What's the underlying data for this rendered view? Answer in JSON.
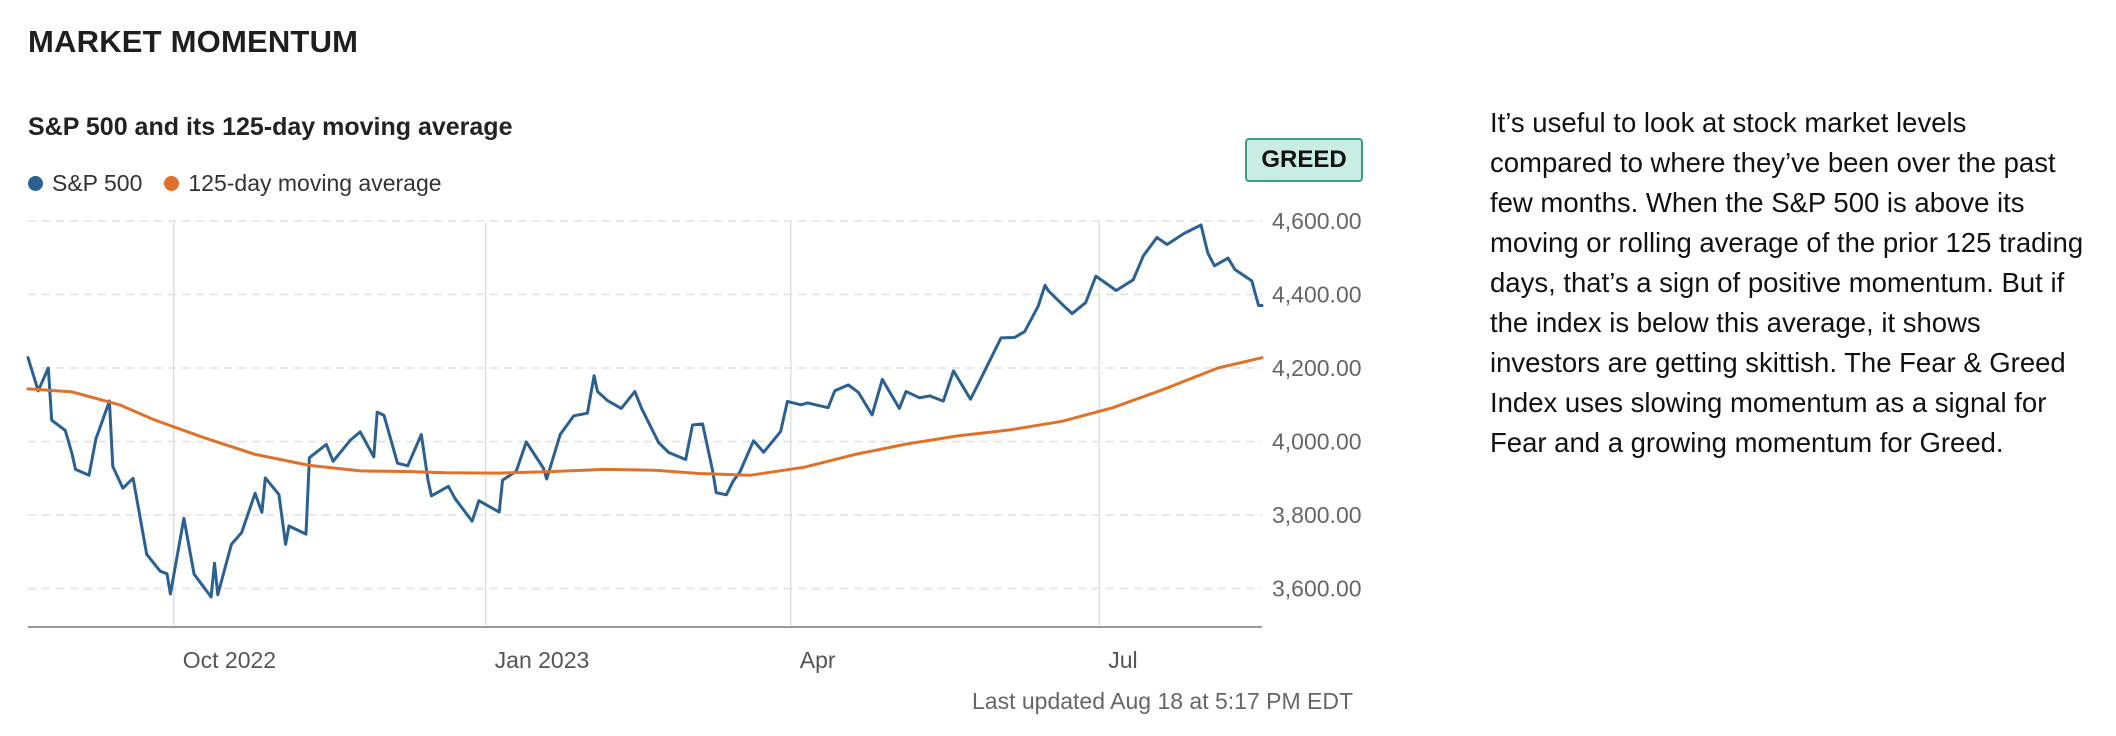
{
  "page": {
    "section_title": "MARKET MOMENTUM",
    "indicator_label": "GREED",
    "last_updated": "Last updated Aug 18 at 5:17 PM EDT",
    "description": "It’s useful to look at stock market levels compared to where they’ve been over the past few months. When the S&P 500 is above its moving or rolling average of the prior 125 trading days, that’s a sign of positive momentum. But if the index is below this average, it shows investors are getting skittish. The Fear & Greed Index uses slowing momentum as a signal for Fear and a growing momentum for Greed."
  },
  "colors": {
    "sp500": "#2b6092",
    "moving_average": "#e0712b",
    "grid": "#e0e0e0",
    "axis": "#999999"
  },
  "chart_data": {
    "type": "line",
    "title": "S&P 500 and its 125-day moving average",
    "x_ticks": [
      {
        "date": "2022-10-01",
        "label": "Oct 2022"
      },
      {
        "date": "2023-01-01",
        "label": "Jan 2023"
      },
      {
        "date": "2023-04-01",
        "label": "Apr"
      },
      {
        "date": "2023-07-01",
        "label": "Jul"
      }
    ],
    "x_range": [
      "2022-08-19",
      "2023-08-18"
    ],
    "y_ticks": [
      3600,
      3800,
      4000,
      4200,
      4400,
      4600
    ],
    "y_tick_labels": [
      "3,600.00",
      "3,800.00",
      "4,000.00",
      "4,200.00",
      "4,400.00",
      "4,600.00"
    ],
    "ylim": [
      3500,
      4600
    ],
    "grid": "vertical solid at x ticks, horizontal dashed at y ticks",
    "legend_position": "top-left",
    "series": [
      {
        "name": "S&P 500",
        "points": [
          [
            "2022-08-19",
            4228
          ],
          [
            "2022-08-22",
            4138
          ],
          [
            "2022-08-25",
            4200
          ],
          [
            "2022-08-26",
            4058
          ],
          [
            "2022-08-30",
            4030
          ],
          [
            "2022-09-01",
            3966
          ],
          [
            "2022-09-02",
            3924
          ],
          [
            "2022-09-06",
            3908
          ],
          [
            "2022-09-08",
            4006
          ],
          [
            "2022-09-12",
            4110
          ],
          [
            "2022-09-13",
            3932
          ],
          [
            "2022-09-16",
            3873
          ],
          [
            "2022-09-19",
            3900
          ],
          [
            "2022-09-23",
            3693
          ],
          [
            "2022-09-27",
            3647
          ],
          [
            "2022-09-29",
            3640
          ],
          [
            "2022-09-30",
            3585
          ],
          [
            "2022-10-04",
            3791
          ],
          [
            "2022-10-07",
            3639
          ],
          [
            "2022-10-12",
            3577
          ],
          [
            "2022-10-13",
            3669
          ],
          [
            "2022-10-14",
            3583
          ],
          [
            "2022-10-18",
            3720
          ],
          [
            "2022-10-21",
            3752
          ],
          [
            "2022-10-25",
            3859
          ],
          [
            "2022-10-27",
            3807
          ],
          [
            "2022-10-28",
            3901
          ],
          [
            "2022-11-01",
            3856
          ],
          [
            "2022-11-03",
            3720
          ],
          [
            "2022-11-04",
            3770
          ],
          [
            "2022-11-09",
            3748
          ],
          [
            "2022-11-10",
            3956
          ],
          [
            "2022-11-15",
            3992
          ],
          [
            "2022-11-17",
            3946
          ],
          [
            "2022-11-22",
            4003
          ],
          [
            "2022-11-25",
            4026
          ],
          [
            "2022-11-29",
            3958
          ],
          [
            "2022-11-30",
            4080
          ],
          [
            "2022-12-02",
            4071
          ],
          [
            "2022-12-06",
            3941
          ],
          [
            "2022-12-09",
            3934
          ],
          [
            "2022-12-13",
            4019
          ],
          [
            "2022-12-15",
            3895
          ],
          [
            "2022-12-16",
            3852
          ],
          [
            "2022-12-21",
            3878
          ],
          [
            "2022-12-23",
            3844
          ],
          [
            "2022-12-28",
            3783
          ],
          [
            "2022-12-30",
            3839
          ],
          [
            "2023-01-05",
            3808
          ],
          [
            "2023-01-06",
            3895
          ],
          [
            "2023-01-10",
            3919
          ],
          [
            "2023-01-13",
            3999
          ],
          [
            "2023-01-18",
            3928
          ],
          [
            "2023-01-19",
            3898
          ],
          [
            "2023-01-23",
            4019
          ],
          [
            "2023-01-27",
            4070
          ],
          [
            "2023-01-31",
            4077
          ],
          [
            "2023-02-02",
            4179
          ],
          [
            "2023-02-03",
            4136
          ],
          [
            "2023-02-06",
            4111
          ],
          [
            "2023-02-10",
            4090
          ],
          [
            "2023-02-14",
            4136
          ],
          [
            "2023-02-16",
            4090
          ],
          [
            "2023-02-21",
            3997
          ],
          [
            "2023-02-24",
            3970
          ],
          [
            "2023-03-01",
            3951
          ],
          [
            "2023-03-03",
            4045
          ],
          [
            "2023-03-06",
            4048
          ],
          [
            "2023-03-09",
            3918
          ],
          [
            "2023-03-10",
            3861
          ],
          [
            "2023-03-13",
            3855
          ],
          [
            "2023-03-15",
            3892
          ],
          [
            "2023-03-17",
            3917
          ],
          [
            "2023-03-21",
            4002
          ],
          [
            "2023-03-24",
            3971
          ],
          [
            "2023-03-29",
            4027
          ],
          [
            "2023-03-31",
            4109
          ],
          [
            "2023-04-04",
            4100
          ],
          [
            "2023-04-06",
            4105
          ],
          [
            "2023-04-12",
            4092
          ],
          [
            "2023-04-14",
            4138
          ],
          [
            "2023-04-18",
            4154
          ],
          [
            "2023-04-21",
            4133
          ],
          [
            "2023-04-25",
            4072
          ],
          [
            "2023-04-28",
            4169
          ],
          [
            "2023-05-03",
            4090
          ],
          [
            "2023-05-05",
            4136
          ],
          [
            "2023-05-09",
            4119
          ],
          [
            "2023-05-12",
            4124
          ],
          [
            "2023-05-16",
            4110
          ],
          [
            "2023-05-19",
            4192
          ],
          [
            "2023-05-24",
            4115
          ],
          [
            "2023-05-26",
            4151
          ],
          [
            "2023-06-02",
            4282
          ],
          [
            "2023-06-06",
            4283
          ],
          [
            "2023-06-09",
            4299
          ],
          [
            "2023-06-13",
            4369
          ],
          [
            "2023-06-15",
            4425
          ],
          [
            "2023-06-16",
            4410
          ],
          [
            "2023-06-21",
            4365
          ],
          [
            "2023-06-23",
            4348
          ],
          [
            "2023-06-27",
            4378
          ],
          [
            "2023-06-30",
            4450
          ],
          [
            "2023-07-06",
            4411
          ],
          [
            "2023-07-11",
            4440
          ],
          [
            "2023-07-14",
            4505
          ],
          [
            "2023-07-18",
            4555
          ],
          [
            "2023-07-21",
            4536
          ],
          [
            "2023-07-26",
            4566
          ],
          [
            "2023-07-31",
            4589
          ],
          [
            "2023-08-02",
            4513
          ],
          [
            "2023-08-04",
            4478
          ],
          [
            "2023-08-08",
            4499
          ],
          [
            "2023-08-10",
            4468
          ],
          [
            "2023-08-15",
            4437
          ],
          [
            "2023-08-17",
            4370
          ],
          [
            "2023-08-18",
            4370
          ]
        ]
      },
      {
        "name": "125-day moving average",
        "points": [
          [
            "2022-08-19",
            4143
          ],
          [
            "2022-09-01",
            4135
          ],
          [
            "2022-09-15",
            4100
          ],
          [
            "2022-09-25",
            4060
          ],
          [
            "2022-10-10",
            4010
          ],
          [
            "2022-10-25",
            3965
          ],
          [
            "2022-11-10",
            3935
          ],
          [
            "2022-11-25",
            3920
          ],
          [
            "2022-12-10",
            3918
          ],
          [
            "2022-12-20",
            3915
          ],
          [
            "2023-01-05",
            3914
          ],
          [
            "2023-01-20",
            3918
          ],
          [
            "2023-02-05",
            3924
          ],
          [
            "2023-02-20",
            3922
          ],
          [
            "2023-03-05",
            3913
          ],
          [
            "2023-03-20",
            3908
          ],
          [
            "2023-04-05",
            3930
          ],
          [
            "2023-04-20",
            3965
          ],
          [
            "2023-05-05",
            3993
          ],
          [
            "2023-05-20",
            4015
          ],
          [
            "2023-06-05",
            4032
          ],
          [
            "2023-06-20",
            4055
          ],
          [
            "2023-07-05",
            4092
          ],
          [
            "2023-07-20",
            4142
          ],
          [
            "2023-08-05",
            4200
          ],
          [
            "2023-08-18",
            4228
          ]
        ]
      }
    ]
  }
}
